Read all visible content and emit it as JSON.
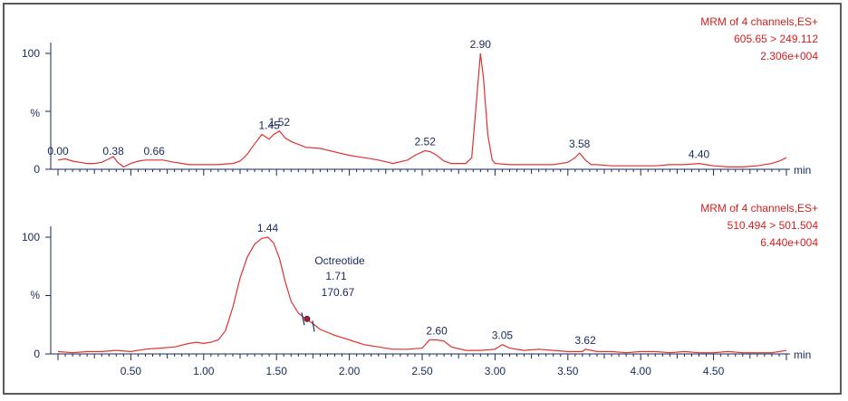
{
  "colors": {
    "trace": "#e23030",
    "info": "#d42020",
    "axis": "#1a2a5a",
    "frame": "#5a5a5a"
  },
  "chart_data": [
    {
      "type": "line",
      "xlim": [
        0,
        5.0
      ],
      "ylim": [
        0,
        100
      ],
      "y_ticks": [
        "100",
        "%",
        "0"
      ],
      "x_unit": "min",
      "info": [
        "MRM of 4 channels,ES+",
        "605.65 > 249.112",
        "2.306e+004"
      ],
      "peak_labels": [
        {
          "x": 0.0,
          "y": 8,
          "label": "0.00"
        },
        {
          "x": 0.38,
          "y": 8,
          "label": "0.38"
        },
        {
          "x": 0.66,
          "y": 8,
          "label": "0.66"
        },
        {
          "x": 1.45,
          "y": 30,
          "label": "1.45"
        },
        {
          "x": 1.52,
          "y": 33,
          "label": "1.52"
        },
        {
          "x": 2.52,
          "y": 16,
          "label": "2.52"
        },
        {
          "x": 2.9,
          "y": 100,
          "label": "2.90"
        },
        {
          "x": 3.58,
          "y": 14,
          "label": "3.58"
        },
        {
          "x": 4.4,
          "y": 5,
          "label": "4.40"
        }
      ],
      "series": [
        {
          "x": [
            0.0,
            0.05,
            0.1,
            0.15,
            0.2,
            0.25,
            0.3,
            0.35,
            0.38,
            0.41,
            0.45,
            0.5,
            0.55,
            0.6,
            0.66,
            0.72,
            0.8,
            0.9,
            1.0,
            1.1,
            1.2,
            1.25,
            1.3,
            1.35,
            1.4,
            1.45,
            1.48,
            1.52,
            1.56,
            1.6,
            1.7,
            1.8,
            1.9,
            2.0,
            2.1,
            2.2,
            2.3,
            2.4,
            2.45,
            2.5,
            2.52,
            2.56,
            2.6,
            2.65,
            2.7,
            2.75,
            2.8,
            2.84,
            2.87,
            2.9,
            2.92,
            2.95,
            2.98,
            3.0,
            3.1,
            3.2,
            3.3,
            3.4,
            3.5,
            3.55,
            3.58,
            3.62,
            3.66,
            3.7,
            3.8,
            3.9,
            4.0,
            4.1,
            4.2,
            4.3,
            4.4,
            4.45,
            4.5,
            4.6,
            4.7,
            4.8,
            4.9,
            4.95,
            5.0
          ],
          "y": [
            8,
            9,
            7,
            6,
            5,
            5,
            6,
            9,
            11,
            6,
            2,
            5,
            7,
            8,
            8,
            8,
            6,
            4,
            4,
            4,
            5,
            7,
            13,
            22,
            30,
            26,
            30,
            33,
            27,
            24,
            19,
            18,
            15,
            12,
            10,
            8,
            5,
            8,
            12,
            15,
            16,
            15,
            12,
            7,
            5,
            5,
            5,
            10,
            55,
            100,
            80,
            30,
            8,
            5,
            4,
            4,
            4,
            4,
            6,
            10,
            14,
            8,
            4,
            4,
            3,
            3,
            3,
            3,
            4,
            4,
            5,
            4,
            3,
            2,
            2,
            3,
            5,
            7,
            10
          ]
        }
      ]
    },
    {
      "type": "line",
      "xlim": [
        0,
        5.0
      ],
      "ylim": [
        0,
        100
      ],
      "y_ticks": [
        "100",
        "%",
        "0"
      ],
      "x_ticks": [
        "0.50",
        "1.00",
        "1.50",
        "2.00",
        "2.50",
        "3.00",
        "3.50",
        "4.00",
        "4.50"
      ],
      "x_tick_values": [
        0.5,
        1.0,
        1.5,
        2.0,
        2.5,
        3.0,
        3.5,
        4.0,
        4.5
      ],
      "x_unit": "min",
      "info": [
        "MRM of 4 channels,ES+",
        "510.494 > 501.504",
        "6.440e+004"
      ],
      "annotation": {
        "name": "Octreotide",
        "rt": "1.71",
        "area": "170.67",
        "x": 1.71,
        "y": 30
      },
      "peak_labels": [
        {
          "x": 1.44,
          "y": 100,
          "label": "1.44"
        },
        {
          "x": 2.6,
          "y": 12,
          "label": "2.60"
        },
        {
          "x": 3.05,
          "y": 8,
          "label": "3.05"
        },
        {
          "x": 3.62,
          "y": 4,
          "label": "3.62"
        }
      ],
      "series": [
        {
          "x": [
            0.0,
            0.1,
            0.2,
            0.3,
            0.4,
            0.5,
            0.6,
            0.7,
            0.8,
            0.9,
            0.95,
            1.0,
            1.05,
            1.1,
            1.15,
            1.2,
            1.25,
            1.3,
            1.35,
            1.4,
            1.44,
            1.48,
            1.52,
            1.56,
            1.6,
            1.65,
            1.7,
            1.75,
            1.8,
            1.9,
            2.0,
            2.1,
            2.2,
            2.3,
            2.4,
            2.5,
            2.55,
            2.6,
            2.65,
            2.7,
            2.8,
            2.9,
            3.0,
            3.05,
            3.1,
            3.2,
            3.3,
            3.4,
            3.5,
            3.6,
            3.62,
            3.66,
            3.7,
            3.8,
            3.9,
            4.0,
            4.1,
            4.2,
            4.3,
            4.4,
            4.5,
            4.6,
            4.7,
            4.8,
            4.9,
            5.0
          ],
          "y": [
            2,
            1,
            2,
            2,
            3,
            2,
            4,
            5,
            6,
            9,
            10,
            9,
            10,
            12,
            20,
            40,
            65,
            83,
            94,
            99,
            100,
            95,
            82,
            62,
            45,
            35,
            30,
            26,
            21,
            16,
            12,
            8,
            6,
            4,
            4,
            5,
            12,
            12,
            11,
            6,
            3,
            3,
            4,
            8,
            5,
            3,
            4,
            3,
            2,
            2,
            4,
            3,
            2,
            2,
            1,
            2,
            2,
            1,
            2,
            1,
            1,
            2,
            1,
            1,
            1,
            3
          ]
        }
      ]
    }
  ]
}
